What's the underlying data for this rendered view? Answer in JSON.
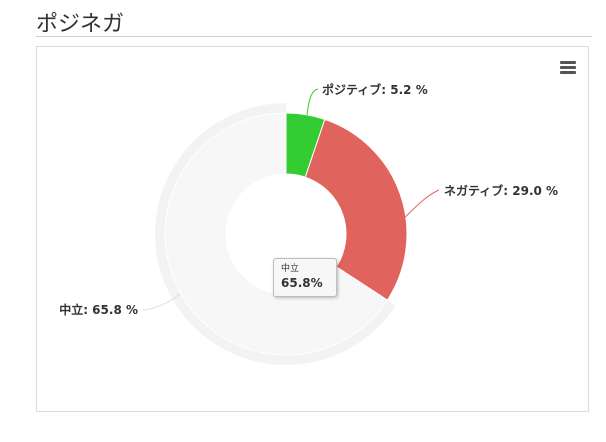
{
  "page": {
    "title": "ポジネガ"
  },
  "chart_data": {
    "type": "pie",
    "variant": "donut",
    "title": "",
    "series": [
      {
        "name": "",
        "slices": [
          {
            "label": "ポジティブ",
            "value": 5.2,
            "color": "#33cc33",
            "data_label": "ポジティブ: 5.2 %"
          },
          {
            "label": "ネガティブ",
            "value": 29.0,
            "color": "#e0635d",
            "data_label": "ネガティブ: 29.0 %"
          },
          {
            "label": "中立",
            "value": 65.8,
            "color": "#f7f7f7",
            "data_label": "中立: 65.8 %"
          }
        ]
      }
    ],
    "legend": "none",
    "hovered_slice": "中立"
  },
  "tooltip": {
    "label": "中立",
    "value": "65.8%"
  },
  "menu": {
    "icon": "hamburger-menu-icon"
  }
}
